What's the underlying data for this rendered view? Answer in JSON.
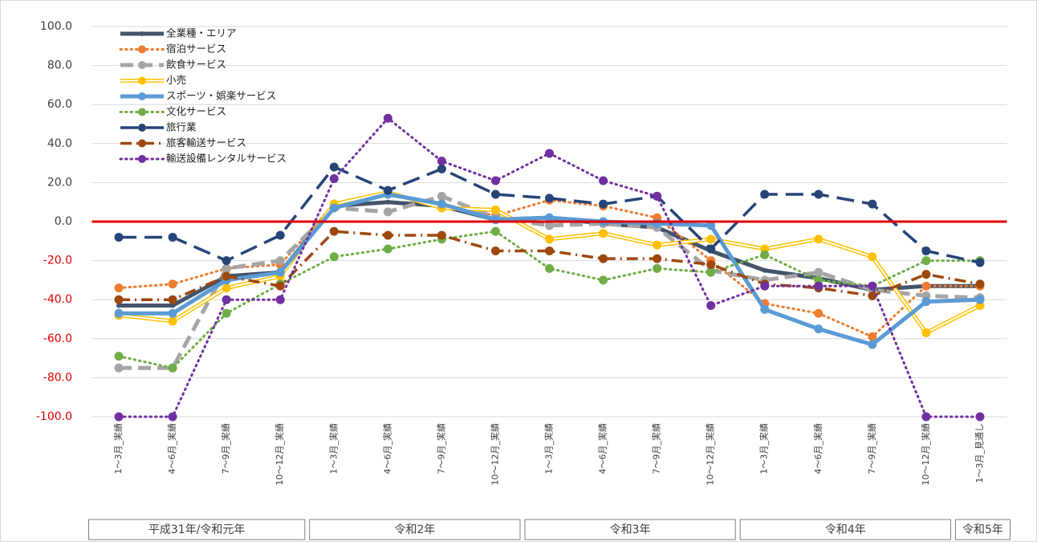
{
  "chart_data": {
    "type": "line",
    "categories": [
      "1～3月_実績",
      "4～6月_実績",
      "7～9月_実績",
      "10～12月_実績",
      "1～3月_実績",
      "4～6月_実績",
      "7～9月_実績",
      "10～12月_実績",
      "1～3月_実績",
      "4～6月_実績",
      "7～9月_実績",
      "10～12月_実績",
      "1～3月_実績",
      "4～6月_実績",
      "7～9月_実績",
      "10～12月_実績",
      "1～3月_見通し"
    ],
    "groups": [
      {
        "label": "平成31年/令和元年",
        "span": 4
      },
      {
        "label": "令和2年",
        "span": 4
      },
      {
        "label": "令和3年",
        "span": 4
      },
      {
        "label": "令和4年",
        "span": 4
      },
      {
        "label": "令和5年",
        "span": 1
      }
    ],
    "ylim": [
      -100,
      100
    ],
    "yticks": [
      {
        "value": -100,
        "label": "-100.0"
      },
      {
        "value": -80,
        "label": "-80.0"
      },
      {
        "value": -60,
        "label": "-60.0"
      },
      {
        "value": -40,
        "label": "-40.0"
      },
      {
        "value": -20,
        "label": "-20.0"
      },
      {
        "value": 0,
        "label": "0.0"
      },
      {
        "value": 20,
        "label": "20.0"
      },
      {
        "value": 40,
        "label": "40.0"
      },
      {
        "value": 60,
        "label": "60.0"
      },
      {
        "value": 80,
        "label": "80.0"
      },
      {
        "value": 100,
        "label": "100.0"
      }
    ],
    "grid": true,
    "negative_tick_color": "#e00000",
    "reference_line": {
      "value": 0,
      "color": "#e00000"
    },
    "legend": "upper-left",
    "series": [
      {
        "name": "全業種・エリア",
        "color": "#44546a",
        "style": "solid-thick",
        "values": [
          -43,
          -43,
          -28,
          -26,
          8,
          10,
          8,
          1,
          2,
          -1,
          -3,
          -15,
          -25,
          -29,
          -35,
          -33,
          -33
        ]
      },
      {
        "name": "宿泊サービス",
        "color": "#ed7d31",
        "style": "dotted",
        "values": [
          -34,
          -32,
          -24,
          -22,
          9,
          14,
          9,
          3,
          11,
          8,
          2,
          -20,
          -42,
          -47,
          -59,
          -33,
          -33
        ]
      },
      {
        "name": "飲食サービス",
        "color": "#a5a5a5",
        "style": "dashed-thick",
        "values": [
          -75,
          -75,
          -24,
          -20,
          7,
          5,
          13,
          2,
          -2,
          -1,
          -3,
          -25,
          -30,
          -26,
          -35,
          -38,
          -39
        ]
      },
      {
        "name": "小売",
        "color": "#ffc000",
        "style": "double",
        "values": [
          -48,
          -51,
          -34,
          -28,
          9,
          15,
          7,
          6,
          -9,
          -6,
          -12,
          -9,
          -14,
          -9,
          -18,
          -57,
          -43
        ]
      },
      {
        "name": "スポーツ・娯楽サービス",
        "color": "#5b9bd5",
        "style": "solid-thick",
        "values": [
          -47,
          -47,
          -30,
          -26,
          7,
          14,
          9,
          1,
          2,
          0,
          -1,
          -2,
          -45,
          -55,
          -63,
          -41,
          -40
        ]
      },
      {
        "name": "文化サービス",
        "color": "#70ad47",
        "style": "dotted",
        "values": [
          -69,
          -75,
          -47,
          -32,
          -18,
          -14,
          -9,
          -5,
          -24,
          -30,
          -24,
          -26,
          -17,
          -30,
          -33,
          -20,
          -20
        ]
      },
      {
        "name": "旅行業",
        "color": "#264478",
        "style": "long-dash",
        "values": [
          -8,
          -8,
          -20,
          -7,
          28,
          16,
          27,
          14,
          12,
          9,
          13,
          -14,
          14,
          14,
          9,
          -15,
          -21
        ]
      },
      {
        "name": "旅客輸送サービス",
        "color": "#9e480e",
        "style": "dash-dot",
        "values": [
          -40,
          -40,
          -28,
          -33,
          -5,
          -7,
          -7,
          -15,
          -15,
          -19,
          -19,
          -22,
          -32,
          -34,
          -38,
          -27,
          -32
        ]
      },
      {
        "name": "輸送設備レンタルサービス",
        "color": "#7030a0",
        "style": "dotted",
        "values": [
          -100,
          -100,
          -40,
          -40,
          22,
          53,
          31,
          21,
          35,
          21,
          13,
          -43,
          -33,
          -33,
          -33,
          -100,
          -100
        ]
      }
    ]
  }
}
